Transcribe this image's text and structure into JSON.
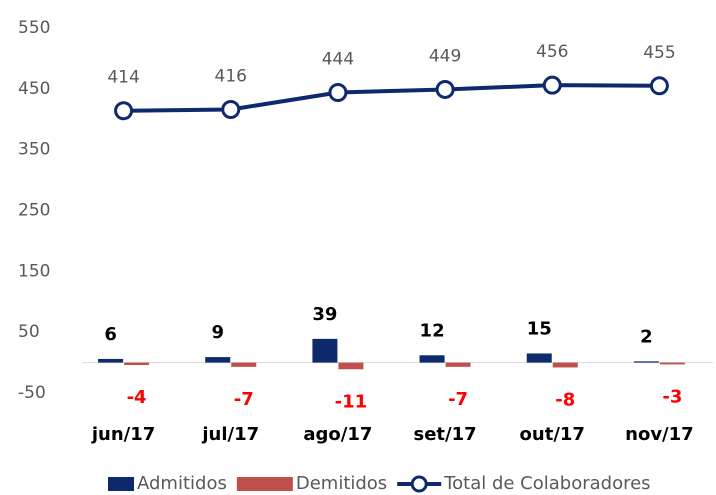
{
  "chart_data": {
    "type": "combo",
    "categories": [
      "jun/17",
      "jul/17",
      "ago/17",
      "set/17",
      "out/17",
      "nov/17"
    ],
    "series": [
      {
        "name": "Admitidos",
        "type": "bar",
        "color": "#0f2a6c",
        "values": [
          6,
          9,
          39,
          12,
          15,
          2
        ]
      },
      {
        "name": "Demitidos",
        "type": "bar",
        "color": "#c0504d",
        "values": [
          -4,
          -7,
          -11,
          -7,
          -8,
          -3
        ]
      },
      {
        "name": "Total de Colaboradores",
        "type": "line",
        "color": "#0f2a6c",
        "values": [
          414,
          416,
          444,
          449,
          456,
          455
        ]
      }
    ],
    "ylim": [
      -50,
      550
    ],
    "yticks": [
      -50,
      50,
      150,
      250,
      350,
      450,
      550
    ],
    "legend": "bottom"
  }
}
